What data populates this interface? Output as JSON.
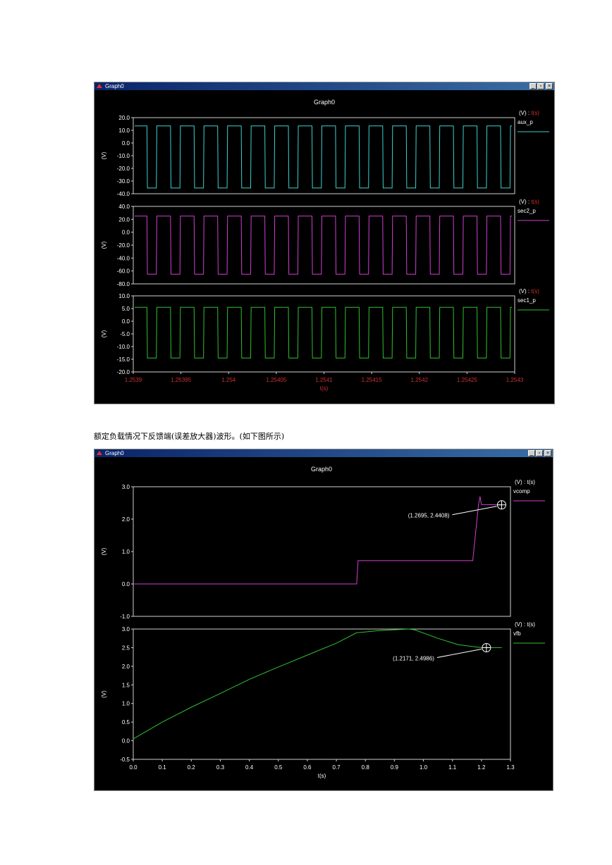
{
  "caption": "额定负载情况下反馈端(误差放大器)波形。(如下图所示)",
  "windows": [
    {
      "title": "Graph0",
      "graph_title": "Graph0",
      "x_axis_label": "t(s)",
      "x_tick_labels": [
        "1.2539",
        "1.25395",
        "1.254",
        "1.25405",
        "1.2541",
        "1.25415",
        "1.2542",
        "1.25425",
        "1.2543"
      ],
      "controls": {
        "minimize": "_",
        "maximize": "▫",
        "close": "×"
      }
    },
    {
      "title": "Graph0",
      "graph_title": "Graph0",
      "x_axis_label": "t(s)",
      "x_tick_labels": [
        "0.0",
        "0.1",
        "0.2",
        "0.3",
        "0.4",
        "0.5",
        "0.6",
        "0.7",
        "0.8",
        "0.9",
        "1.0",
        "1.1",
        "1.2",
        "1.3"
      ],
      "controls": {
        "minimize": "_",
        "maximize": "▫",
        "close": "×"
      }
    }
  ],
  "chart_data": [
    {
      "type": "line",
      "x_range": [
        1.2539,
        1.2543
      ],
      "panels": [
        {
          "legend_header": "(V) : t(s)",
          "series_name": "aux_p",
          "color": "#3fd0d0",
          "ylabel": "(V)",
          "ylim": [
            -40,
            20
          ],
          "y_ticks": [
            "20.0",
            "10.0",
            "0.0",
            "-10.0",
            "-20.0",
            "-30.0",
            "-40.0"
          ],
          "square_wave": {
            "high": 13.5,
            "low": -35.5,
            "cycles": 16
          }
        },
        {
          "legend_header": "(V) : t(s)",
          "series_name": "sec2_p",
          "color": "#d040d0",
          "ylabel": "(V)",
          "ylim": [
            -80,
            40
          ],
          "y_ticks": [
            "40.0",
            "20.0",
            "0.0",
            "-20.0",
            "-40.0",
            "-60.0",
            "-80.0"
          ],
          "square_wave": {
            "high": 25,
            "low": -65,
            "cycles": 16
          }
        },
        {
          "legend_header": "(V) : t(s)",
          "series_name": "sec1_p",
          "color": "#30c030",
          "ylabel": "(V)",
          "ylim": [
            -20,
            10
          ],
          "y_ticks": [
            "10.0",
            "5.0",
            "0.0",
            "-5.0",
            "-10.0",
            "-15.0",
            "-20.0"
          ],
          "square_wave": {
            "high": 5.5,
            "low": -14.5,
            "cycles": 16
          }
        }
      ]
    },
    {
      "type": "line",
      "x_range": [
        0,
        1.3
      ],
      "panels": [
        {
          "legend_header": "(V) : t(s)",
          "series_name": "vcomp",
          "color": "#d040d0",
          "ylabel": "(V)",
          "ylim": [
            -1,
            3
          ],
          "y_ticks": [
            "3.0",
            "2.0",
            "1.0",
            "0.0",
            "-1.0"
          ],
          "points": [
            [
              0,
              0
            ],
            [
              0.77,
              0
            ],
            [
              0.775,
              0.72
            ],
            [
              1.17,
              0.72
            ],
            [
              1.19,
              2.45
            ],
            [
              1.195,
              2.7
            ],
            [
              1.2,
              2.45
            ],
            [
              1.27,
              2.44
            ]
          ],
          "annotation": {
            "text": "(1.2695, 2.4408)",
            "x": 1.2695,
            "y": 2.4408
          }
        },
        {
          "legend_header": "(V) : t(s)",
          "series_name": "vfb",
          "color": "#30c030",
          "ylabel": "(V)",
          "ylim": [
            -0.5,
            3
          ],
          "y_ticks": [
            "3.0",
            "2.5",
            "2.0",
            "1.5",
            "1.0",
            "0.5",
            "0.0",
            "-0.5"
          ],
          "points": [
            [
              0,
              0.05
            ],
            [
              0.1,
              0.5
            ],
            [
              0.2,
              0.9
            ],
            [
              0.3,
              1.27
            ],
            [
              0.4,
              1.65
            ],
            [
              0.5,
              1.98
            ],
            [
              0.6,
              2.3
            ],
            [
              0.7,
              2.62
            ],
            [
              0.77,
              2.9
            ],
            [
              0.85,
              2.96
            ],
            [
              0.95,
              3.0
            ],
            [
              0.97,
              2.98
            ],
            [
              1.05,
              2.75
            ],
            [
              1.12,
              2.58
            ],
            [
              1.2,
              2.5
            ],
            [
              1.27,
              2.5
            ]
          ],
          "annotation": {
            "text": "(1.2171, 2.4986)",
            "x": 1.2171,
            "y": 2.4986
          }
        }
      ]
    }
  ]
}
